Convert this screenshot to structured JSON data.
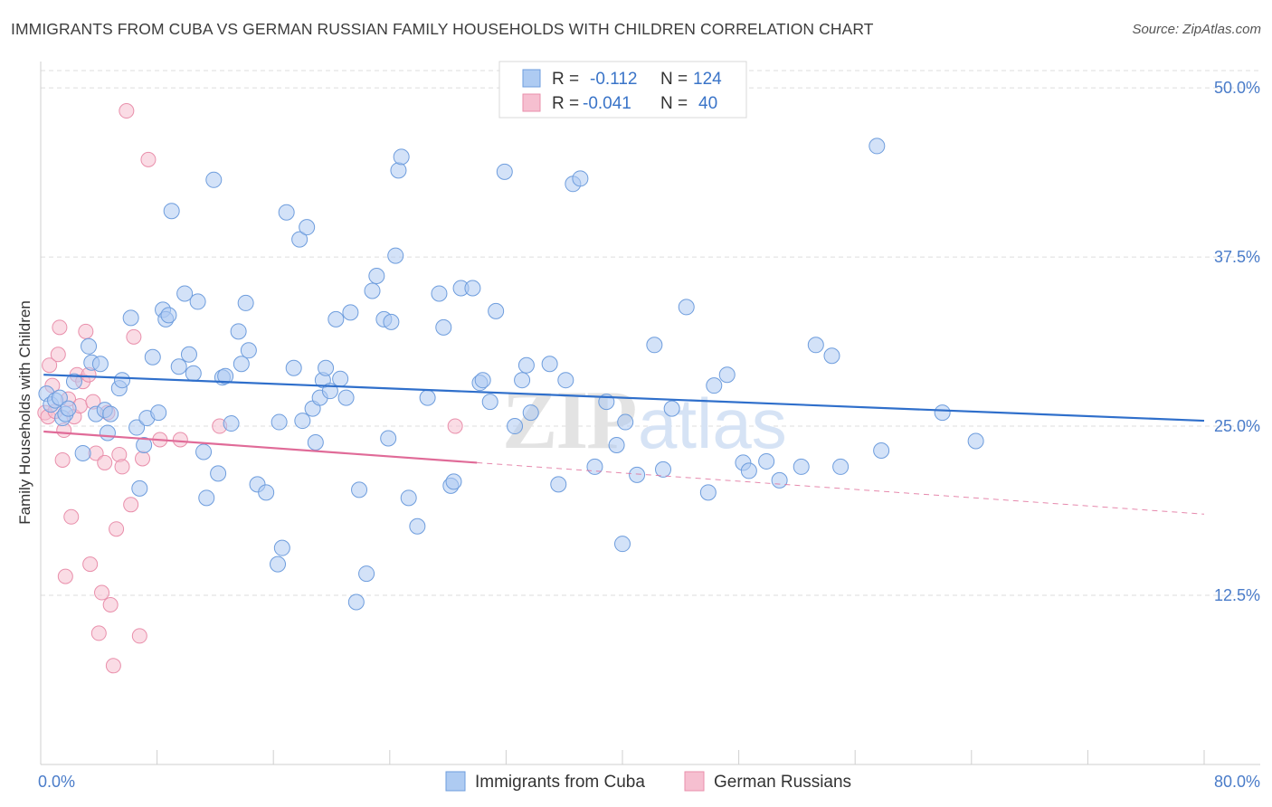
{
  "title": "IMMIGRANTS FROM CUBA VS GERMAN RUSSIAN FAMILY HOUSEHOLDS WITH CHILDREN CORRELATION CHART",
  "source": "Source: ZipAtlas.com",
  "watermark": "ZIPatlas",
  "colors": {
    "blue_fill": "#aecbf2",
    "blue_stroke": "#6e9ddd",
    "blue_line": "#2f6fcb",
    "pink_fill": "#f6bfd0",
    "pink_stroke": "#e98fab",
    "pink_line": "#e06b98",
    "axis_text": "#4a7cc9",
    "grid": "#dedede"
  },
  "legend_box": {
    "rows": [
      {
        "r_label": "R =",
        "r_value": "-0.112",
        "n_label": "N =",
        "n_value": "124",
        "series": "blue"
      },
      {
        "r_label": "R =",
        "r_value": "-0.041",
        "n_label": "N =",
        "n_value": "40",
        "series": "pink"
      }
    ]
  },
  "chart_data": {
    "type": "scatter",
    "xlabel": "",
    "ylabel": "Family Households with Children",
    "xlim": [
      0,
      80
    ],
    "ylim": [
      0,
      52.5
    ],
    "x_tick_labels": [
      "0.0%",
      "80.0%"
    ],
    "y_ticks": [
      12.5,
      25.0,
      37.5,
      50.0
    ],
    "y_tick_labels": [
      "12.5%",
      "25.0%",
      "37.5%",
      "50.0%"
    ],
    "legend": [
      "Immigrants from Cuba",
      "German Russians"
    ],
    "series": [
      {
        "name": "Immigrants from Cuba",
        "color": "blue",
        "trend": {
          "x0": 0.2,
          "y0": 28.8,
          "x1": 80,
          "y1": 25.4
        },
        "points": [
          [
            0.4,
            27.4
          ],
          [
            0.7,
            26.6
          ],
          [
            1.0,
            26.9
          ],
          [
            1.3,
            27.1
          ],
          [
            1.5,
            25.6
          ],
          [
            1.7,
            25.9
          ],
          [
            1.9,
            26.3
          ],
          [
            2.3,
            28.3
          ],
          [
            2.9,
            23.0
          ],
          [
            3.3,
            30.9
          ],
          [
            3.5,
            29.7
          ],
          [
            3.8,
            25.9
          ],
          [
            4.1,
            29.6
          ],
          [
            4.4,
            26.2
          ],
          [
            4.6,
            24.5
          ],
          [
            4.8,
            25.9
          ],
          [
            5.4,
            27.8
          ],
          [
            5.6,
            28.4
          ],
          [
            6.2,
            33.0
          ],
          [
            6.6,
            24.9
          ],
          [
            6.8,
            20.4
          ],
          [
            7.1,
            23.6
          ],
          [
            7.3,
            25.6
          ],
          [
            7.7,
            30.1
          ],
          [
            8.1,
            26.0
          ],
          [
            8.4,
            33.6
          ],
          [
            8.6,
            32.9
          ],
          [
            8.8,
            33.2
          ],
          [
            9.0,
            40.9
          ],
          [
            9.5,
            29.4
          ],
          [
            9.9,
            34.8
          ],
          [
            10.2,
            30.3
          ],
          [
            10.5,
            28.9
          ],
          [
            10.8,
            34.2
          ],
          [
            11.2,
            23.1
          ],
          [
            11.4,
            19.7
          ],
          [
            11.9,
            43.2
          ],
          [
            12.2,
            21.5
          ],
          [
            12.5,
            28.6
          ],
          [
            12.7,
            28.7
          ],
          [
            13.1,
            25.2
          ],
          [
            13.6,
            32.0
          ],
          [
            13.8,
            29.6
          ],
          [
            14.1,
            34.1
          ],
          [
            14.3,
            30.6
          ],
          [
            14.9,
            20.7
          ],
          [
            15.5,
            20.1
          ],
          [
            16.3,
            14.8
          ],
          [
            16.4,
            25.3
          ],
          [
            16.6,
            16.0
          ],
          [
            16.9,
            40.8
          ],
          [
            17.4,
            29.3
          ],
          [
            17.8,
            38.8
          ],
          [
            18.0,
            25.4
          ],
          [
            18.3,
            39.7
          ],
          [
            18.7,
            26.3
          ],
          [
            18.9,
            23.8
          ],
          [
            19.2,
            27.1
          ],
          [
            19.4,
            28.4
          ],
          [
            19.6,
            29.3
          ],
          [
            19.9,
            27.6
          ],
          [
            20.3,
            32.9
          ],
          [
            20.6,
            28.5
          ],
          [
            21.0,
            27.1
          ],
          [
            21.3,
            33.4
          ],
          [
            21.7,
            12.0
          ],
          [
            21.9,
            20.3
          ],
          [
            22.4,
            14.1
          ],
          [
            22.8,
            35.0
          ],
          [
            23.1,
            36.1
          ],
          [
            23.6,
            32.9
          ],
          [
            23.9,
            24.1
          ],
          [
            24.1,
            32.7
          ],
          [
            24.4,
            37.6
          ],
          [
            24.6,
            43.9
          ],
          [
            24.8,
            44.9
          ],
          [
            25.3,
            19.7
          ],
          [
            25.9,
            17.6
          ],
          [
            26.6,
            27.1
          ],
          [
            27.4,
            34.8
          ],
          [
            27.7,
            32.3
          ],
          [
            28.2,
            20.6
          ],
          [
            28.4,
            20.9
          ],
          [
            28.9,
            35.2
          ],
          [
            29.7,
            35.2
          ],
          [
            30.2,
            28.2
          ],
          [
            30.4,
            28.4
          ],
          [
            30.9,
            26.8
          ],
          [
            31.3,
            33.5
          ],
          [
            31.9,
            43.8
          ],
          [
            32.6,
            25.0
          ],
          [
            33.1,
            28.4
          ],
          [
            33.4,
            29.5
          ],
          [
            33.7,
            26.0
          ],
          [
            35.0,
            29.6
          ],
          [
            35.6,
            20.7
          ],
          [
            36.1,
            28.4
          ],
          [
            36.6,
            42.9
          ],
          [
            37.1,
            43.3
          ],
          [
            38.1,
            22.0
          ],
          [
            38.9,
            26.8
          ],
          [
            39.6,
            23.6
          ],
          [
            40.0,
            16.3
          ],
          [
            40.2,
            25.3
          ],
          [
            41.0,
            21.4
          ],
          [
            42.2,
            31.0
          ],
          [
            42.8,
            21.8
          ],
          [
            43.4,
            26.3
          ],
          [
            44.4,
            33.8
          ],
          [
            45.9,
            20.1
          ],
          [
            46.3,
            28.0
          ],
          [
            47.2,
            28.8
          ],
          [
            48.3,
            22.3
          ],
          [
            48.7,
            21.7
          ],
          [
            49.9,
            22.4
          ],
          [
            50.8,
            21.0
          ],
          [
            52.3,
            22.0
          ],
          [
            53.3,
            31.0
          ],
          [
            54.4,
            30.2
          ],
          [
            55.0,
            22.0
          ],
          [
            57.5,
            45.7
          ],
          [
            57.8,
            23.2
          ],
          [
            62.0,
            26.0
          ],
          [
            64.3,
            23.9
          ]
        ]
      },
      {
        "name": "German Russians",
        "color": "pink",
        "trend": {
          "x0": 0.2,
          "y0": 24.6,
          "x1": 30.0,
          "y1": 22.3,
          "dash_to_x": 80,
          "dash_to_y": 18.5
        },
        "points": [
          [
            0.3,
            26.0
          ],
          [
            0.5,
            25.7
          ],
          [
            0.6,
            29.5
          ],
          [
            0.8,
            28.0
          ],
          [
            1.0,
            26.1
          ],
          [
            1.2,
            30.3
          ],
          [
            1.3,
            32.3
          ],
          [
            1.5,
            22.5
          ],
          [
            1.6,
            24.7
          ],
          [
            1.7,
            13.9
          ],
          [
            1.9,
            27.0
          ],
          [
            2.1,
            18.3
          ],
          [
            2.3,
            25.7
          ],
          [
            2.5,
            28.8
          ],
          [
            2.7,
            26.5
          ],
          [
            2.9,
            28.3
          ],
          [
            3.1,
            32.0
          ],
          [
            3.3,
            28.8
          ],
          [
            3.4,
            14.8
          ],
          [
            3.6,
            26.8
          ],
          [
            3.8,
            23.0
          ],
          [
            4.0,
            9.7
          ],
          [
            4.2,
            12.7
          ],
          [
            4.4,
            22.3
          ],
          [
            4.6,
            26.0
          ],
          [
            4.8,
            11.8
          ],
          [
            5.0,
            7.3
          ],
          [
            5.2,
            17.4
          ],
          [
            5.4,
            22.9
          ],
          [
            5.6,
            22.0
          ],
          [
            5.9,
            48.3
          ],
          [
            6.2,
            19.2
          ],
          [
            6.4,
            31.6
          ],
          [
            6.8,
            9.5
          ],
          [
            7.0,
            22.6
          ],
          [
            7.4,
            44.7
          ],
          [
            8.2,
            24.0
          ],
          [
            9.6,
            24.0
          ],
          [
            12.3,
            25.0
          ],
          [
            28.5,
            25.0
          ]
        ]
      }
    ]
  }
}
